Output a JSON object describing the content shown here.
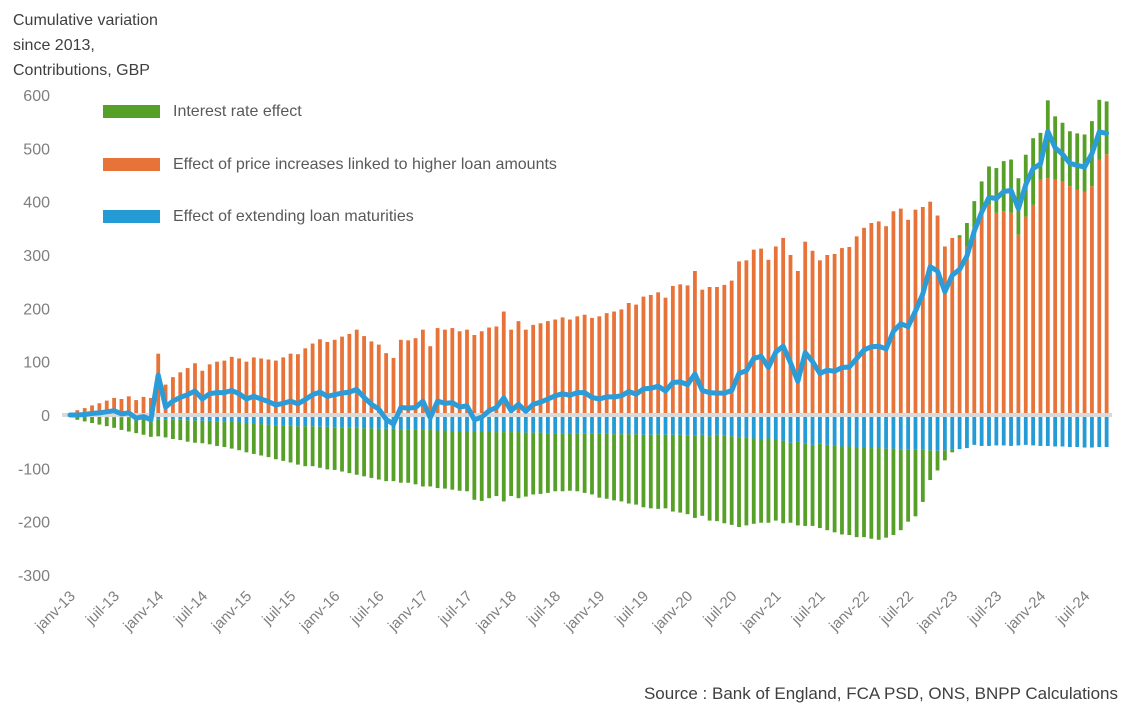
{
  "title": {
    "line1": "Cumulative variation",
    "line2": "since 2013,",
    "line3": "Contributions, GBP"
  },
  "source": "Source : Bank of England, FCA PSD, ONS, BNPP Calculations",
  "colors": {
    "interest_rate_green": "#56a028",
    "price_effect_orange": "#e87339",
    "maturity_blue": "#249bd4",
    "total_line_blue": "#2b9cd8",
    "zero_axis": "#d9d9d9",
    "axis_label_gray": "#7f7f7f",
    "title_text": "#3f3f3f",
    "legend_text": "#595959"
  },
  "legend": {
    "items": [
      {
        "label": "Interest rate effect",
        "series": "interest_rate_effect"
      },
      {
        "label": "Effect of price increases linked to higher loan amounts",
        "series": "price_increase_effect"
      },
      {
        "label": "Effect of extending loan maturities",
        "series": "loan_maturity_effect"
      }
    ]
  },
  "axes": {
    "y_ticks": [
      600,
      500,
      400,
      300,
      200,
      100,
      0,
      -100,
      -200,
      -300
    ],
    "ylim": [
      -300,
      600
    ],
    "x_tick_labels": [
      "janv-13",
      "juil-13",
      "janv-14",
      "juil-14",
      "janv-15",
      "juil-15",
      "janv-16",
      "juil-16",
      "janv-17",
      "juil-17",
      "janv-18",
      "juil-18",
      "janv-19",
      "juil-19",
      "janv-20",
      "juil-20",
      "janv-21",
      "juil-21",
      "janv-22",
      "juil-22",
      "janv-23",
      "juil-23",
      "janv-24",
      "juil-24"
    ],
    "x_tick_every_n_months": 6,
    "grid": "none (only light gray zero axis line)"
  },
  "chart_data": {
    "type": "bar",
    "subtype": "monthly stacked contribution bars with thick total line overlay",
    "start": "2013-01",
    "end": "2024-10",
    "frequency": "monthly",
    "n_months": 142,
    "stacking": "positive values stack upward from zero (orange then green); negative values stack downward (blue then green)",
    "series": [
      {
        "name": "Effect of price increases linked to higher loan amounts",
        "color_key": "price_effect_orange",
        "values": [
          2,
          9,
          13,
          18,
          22,
          27,
          32,
          30,
          35,
          28,
          34,
          32,
          115,
          57,
          71,
          80,
          88,
          97,
          83,
          95,
          100,
          102,
          109,
          106,
          100,
          108,
          106,
          104,
          102,
          108,
          115,
          114,
          125,
          134,
          142,
          137,
          141,
          147,
          152,
          160,
          148,
          138,
          132,
          116,
          107,
          141,
          140,
          144,
          160,
          129,
          163,
          160,
          163,
          157,
          160,
          150,
          157,
          164,
          166,
          194,
          160,
          176,
          160,
          169,
          172,
          176,
          179,
          183,
          179,
          185,
          188,
          182,
          185,
          191,
          194,
          198,
          210,
          207,
          222,
          225,
          230,
          220,
          242,
          245,
          243,
          270,
          235,
          240,
          240,
          244,
          252,
          288,
          290,
          310,
          312,
          291,
          316,
          332,
          300,
          270,
          325,
          308,
          290,
          300,
          302,
          313,
          315,
          335,
          351,
          360,
          363,
          354,
          382,
          387,
          366,
          385,
          390,
          400,
          374,
          316,
          332,
          332,
          316,
          348,
          379,
          394,
          379,
          382,
          379,
          338,
          372,
          394,
          441,
          444,
          441,
          438,
          429,
          422,
          419,
          429,
          479,
          489
        ]
      },
      {
        "name": "Interest rate effect",
        "color_key": "interest_rate_green",
        "values": [
          -1,
          -7,
          -10,
          -12,
          -15,
          -17,
          -20,
          -23,
          -26,
          -28,
          -31,
          -34,
          -32,
          -34,
          -36,
          -38,
          -40,
          -42,
          -42,
          -44,
          -46,
          -48,
          -50,
          -52,
          -55,
          -57,
          -59,
          -61,
          -64,
          -66,
          -69,
          -72,
          -75,
          -75,
          -77,
          -80,
          -80,
          -83,
          -85,
          -88,
          -90,
          -93,
          -95,
          -98,
          -98,
          -100,
          -100,
          -103,
          -106,
          -106,
          -108,
          -109,
          -110,
          -112,
          -113,
          -128,
          -130,
          -125,
          -120,
          -130,
          -120,
          -124,
          -120,
          -116,
          -115,
          -112,
          -109,
          -109,
          -108,
          -108,
          -111,
          -114,
          -120,
          -122,
          -124,
          -126,
          -130,
          -132,
          -136,
          -138,
          -140,
          -138,
          -144,
          -146,
          -148,
          -155,
          -152,
          -158,
          -162,
          -165,
          -166,
          -168,
          -164,
          -160,
          -156,
          -158,
          -152,
          -155,
          -150,
          -158,
          -155,
          -152,
          -158,
          -160,
          -163,
          -165,
          -166,
          -168,
          -168,
          -170,
          -172,
          -167,
          -162,
          -151,
          -135,
          -125,
          -98,
          -56,
          -37,
          -19,
          -5,
          5,
          44,
          53,
          59,
          72,
          84,
          94,
          100,
          106,
          116,
          125,
          88,
          146,
          119,
          110,
          103,
          106,
          107,
          122,
          112,
          99
        ]
      },
      {
        "name": "Effect of extending loan maturities",
        "color_key": "maturity_blue",
        "values": [
          -1,
          -2,
          -2,
          -3,
          -3,
          -4,
          -4,
          -5,
          -5,
          -6,
          -6,
          -7,
          -8,
          -8,
          -9,
          -9,
          -10,
          -10,
          -11,
          -11,
          -12,
          -12,
          -13,
          -14,
          -15,
          -16,
          -17,
          -18,
          -19,
          -20,
          -20,
          -21,
          -21,
          -21,
          -22,
          -22,
          -23,
          -23,
          -24,
          -24,
          -25,
          -25,
          -26,
          -26,
          -26,
          -27,
          -27,
          -27,
          -28,
          -28,
          -29,
          -29,
          -30,
          -30,
          -30,
          -31,
          -31,
          -31,
          -32,
          -32,
          -32,
          -32,
          -33,
          -33,
          -33,
          -34,
          -34,
          -34,
          -34,
          -35,
          -35,
          -35,
          -35,
          -35,
          -36,
          -36,
          -36,
          -36,
          -37,
          -37,
          -36,
          -37,
          -37,
          -37,
          -38,
          -38,
          -37,
          -40,
          -37,
          -38,
          -40,
          -42,
          -43,
          -44,
          -46,
          -44,
          -46,
          -48,
          -52,
          -49,
          -53,
          -56,
          -54,
          -56,
          -57,
          -59,
          -59,
          -61,
          -61,
          -62,
          -62,
          -63,
          -63,
          -65,
          -65,
          -65,
          -65,
          -66,
          -67,
          -66,
          -65,
          -64,
          -62,
          -56,
          -58,
          -58,
          -57,
          -57,
          -58,
          -57,
          -56,
          -57,
          -58,
          -58,
          -59,
          -59,
          -60,
          -60,
          -61,
          -61,
          -60,
          -60
        ]
      }
    ],
    "line": {
      "name": "Total cumulative variation (sum of the three contributions, unlabeled thick blue line)",
      "color_key": "total_line_blue",
      "values": [
        0,
        0,
        1,
        3,
        4,
        6,
        8,
        2,
        4,
        -6,
        -3,
        -9,
        75,
        15,
        26,
        33,
        38,
        45,
        30,
        40,
        42,
        42,
        46,
        40,
        30,
        35,
        30,
        25,
        19,
        22,
        26,
        21,
        29,
        38,
        43,
        35,
        38,
        41,
        43,
        48,
        33,
        20,
        11,
        -8,
        -17,
        14,
        13,
        14,
        26,
        -5,
        26,
        22,
        23,
        15,
        17,
        -9,
        -4,
        8,
        14,
        32,
        8,
        20,
        7,
        20,
        24,
        30,
        36,
        40,
        37,
        42,
        42,
        33,
        30,
        34,
        34,
        36,
        44,
        39,
        49,
        50,
        54,
        45,
        61,
        62,
        57,
        77,
        46,
        42,
        41,
        41,
        46,
        78,
        83,
        106,
        110,
        89,
        118,
        129,
        98,
        63,
        117,
        100,
        78,
        84,
        82,
        89,
        90,
        106,
        122,
        128,
        129,
        124,
        157,
        171,
        166,
        195,
        227,
        278,
        270,
        231,
        262,
        273,
        298,
        345,
        380,
        408,
        406,
        419,
        421,
        387,
        432,
        462,
        471,
        532,
        501,
        489,
        472,
        468,
        465,
        490,
        531,
        528
      ]
    }
  }
}
